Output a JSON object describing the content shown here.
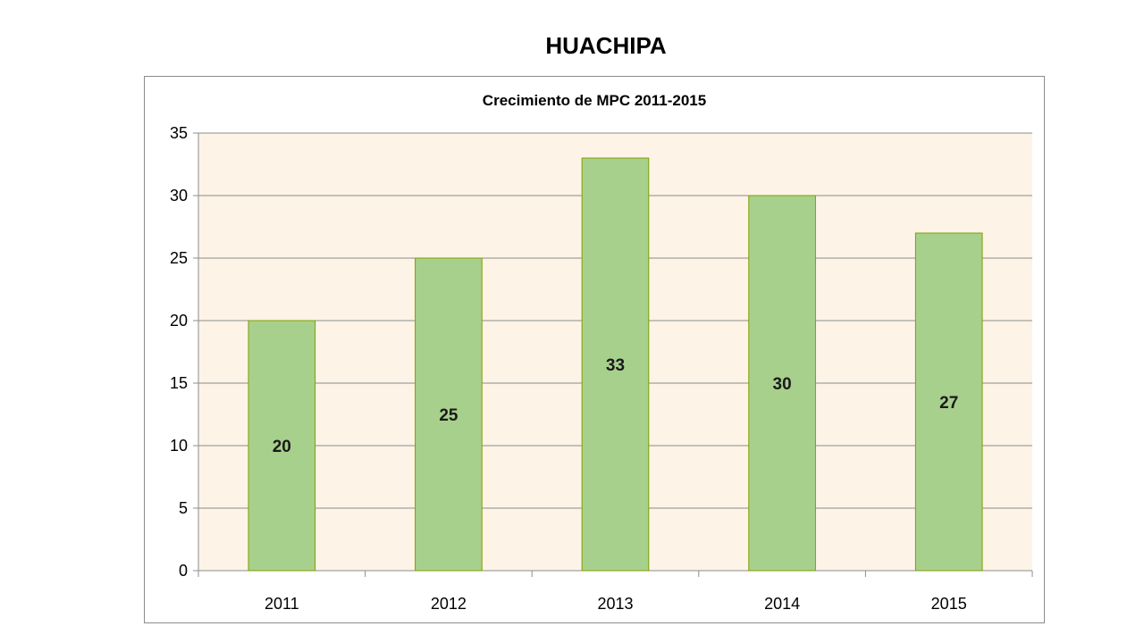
{
  "slide": {
    "title": "HUACHIPA"
  },
  "colors": {
    "plot_bg": "#fdf3e6",
    "bar_fill": "#a8d08d",
    "bar_stroke": "#7f9f00",
    "grid": "#8c8c8c"
  },
  "chart_data": {
    "type": "bar",
    "title": "Crecimiento de MPC 2011-2015",
    "xlabel": "",
    "ylabel": "",
    "categories": [
      "2011",
      "2012",
      "2013",
      "2014",
      "2015"
    ],
    "values": [
      20,
      25,
      33,
      30,
      27
    ],
    "ylim": [
      0,
      35
    ],
    "yticks": [
      0,
      5,
      10,
      15,
      20,
      25,
      30,
      35
    ],
    "grid": true,
    "legend": "none"
  }
}
